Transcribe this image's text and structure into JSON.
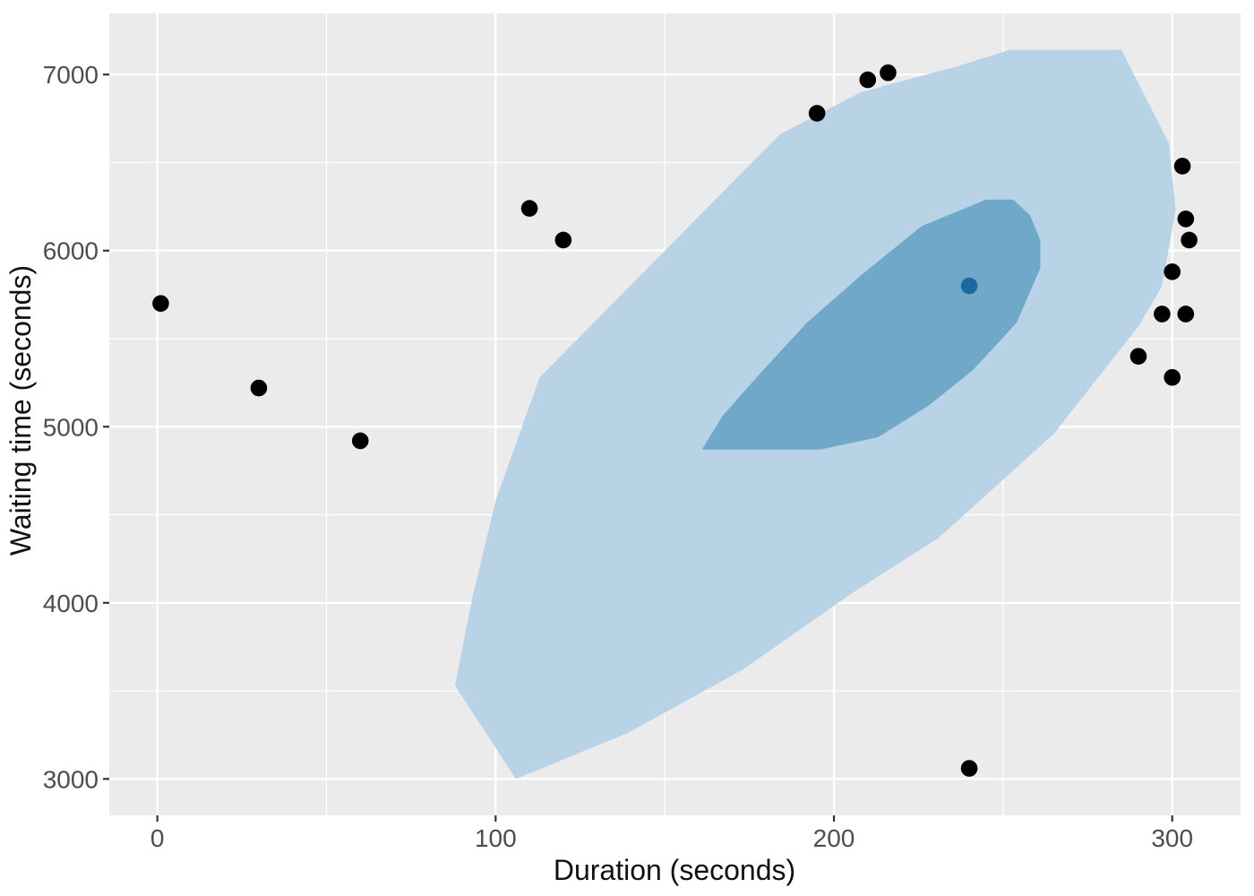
{
  "figure": {
    "background": "#FFFFFF",
    "x_axis_label": "Duration (seconds)",
    "y_axis_label": "Waiting time (seconds)"
  },
  "chart_data": {
    "type": "scatter",
    "title": "",
    "xlabel": "Duration (seconds)",
    "ylabel": "Waiting time (seconds)",
    "xlim": [
      -14.2,
      320.2
    ],
    "ylim": [
      2793,
      7347
    ],
    "x_ticks": [
      0,
      100,
      200,
      300
    ],
    "y_ticks": [
      3000,
      4000,
      5000,
      6000,
      7000
    ],
    "x_minor_ticks": [
      50,
      150,
      250
    ],
    "y_minor_ticks": [
      3500,
      4500,
      5500,
      6500
    ],
    "grid": "on",
    "legend": "none",
    "panel_bg": "#EBEBEB",
    "grid_color": "#FFFFFF",
    "tick_color": "#333333",
    "tick_label_color": "#4D4D4D",
    "hdr_regions": [
      {
        "name": "outer-density-region",
        "color": "#B8D3E6",
        "vertices": [
          [
            113,
            5280
          ],
          [
            184,
            6660
          ],
          [
            208,
            6900
          ],
          [
            237,
            7050
          ],
          [
            252,
            7140
          ],
          [
            285,
            7140
          ],
          [
            299,
            6610
          ],
          [
            301,
            6230
          ],
          [
            297,
            5800
          ],
          [
            290,
            5570
          ],
          [
            265,
            4960
          ],
          [
            231,
            4370
          ],
          [
            205,
            4050
          ],
          [
            173,
            3620
          ],
          [
            139,
            3260
          ],
          [
            106,
            3000
          ],
          [
            88,
            3530
          ],
          [
            93,
            4020
          ],
          [
            100,
            4580
          ]
        ]
      },
      {
        "name": "inner-density-region",
        "color": "#6FA8C8",
        "vertices": [
          [
            161,
            4870
          ],
          [
            196,
            4870
          ],
          [
            213,
            4940
          ],
          [
            228,
            5120
          ],
          [
            241,
            5320
          ],
          [
            254,
            5590
          ],
          [
            261,
            5900
          ],
          [
            261,
            6060
          ],
          [
            258,
            6200
          ],
          [
            253,
            6290
          ],
          [
            245,
            6290
          ],
          [
            226,
            6140
          ],
          [
            208,
            5860
          ],
          [
            192,
            5590
          ],
          [
            179,
            5320
          ],
          [
            167,
            5060
          ]
        ]
      }
    ],
    "series": [
      {
        "name": "observations",
        "color": "#000000",
        "marker_radius": 9.3,
        "points": [
          [
            1,
            5700
          ],
          [
            30,
            5220
          ],
          [
            60,
            4920
          ],
          [
            110,
            6240
          ],
          [
            120,
            6060
          ],
          [
            195,
            6780
          ],
          [
            210,
            6970
          ],
          [
            216,
            7010
          ],
          [
            303,
            6480
          ],
          [
            304,
            6180
          ],
          [
            305,
            6060
          ],
          [
            300,
            5880
          ],
          [
            297,
            5640
          ],
          [
            304,
            5640
          ],
          [
            290,
            5400
          ],
          [
            300,
            5280
          ],
          [
            240,
            3060
          ]
        ]
      },
      {
        "name": "highlighted-mode-point",
        "color": "#1A6AA2",
        "marker_radius": 9.3,
        "points": [
          [
            240,
            5800
          ]
        ]
      }
    ]
  }
}
